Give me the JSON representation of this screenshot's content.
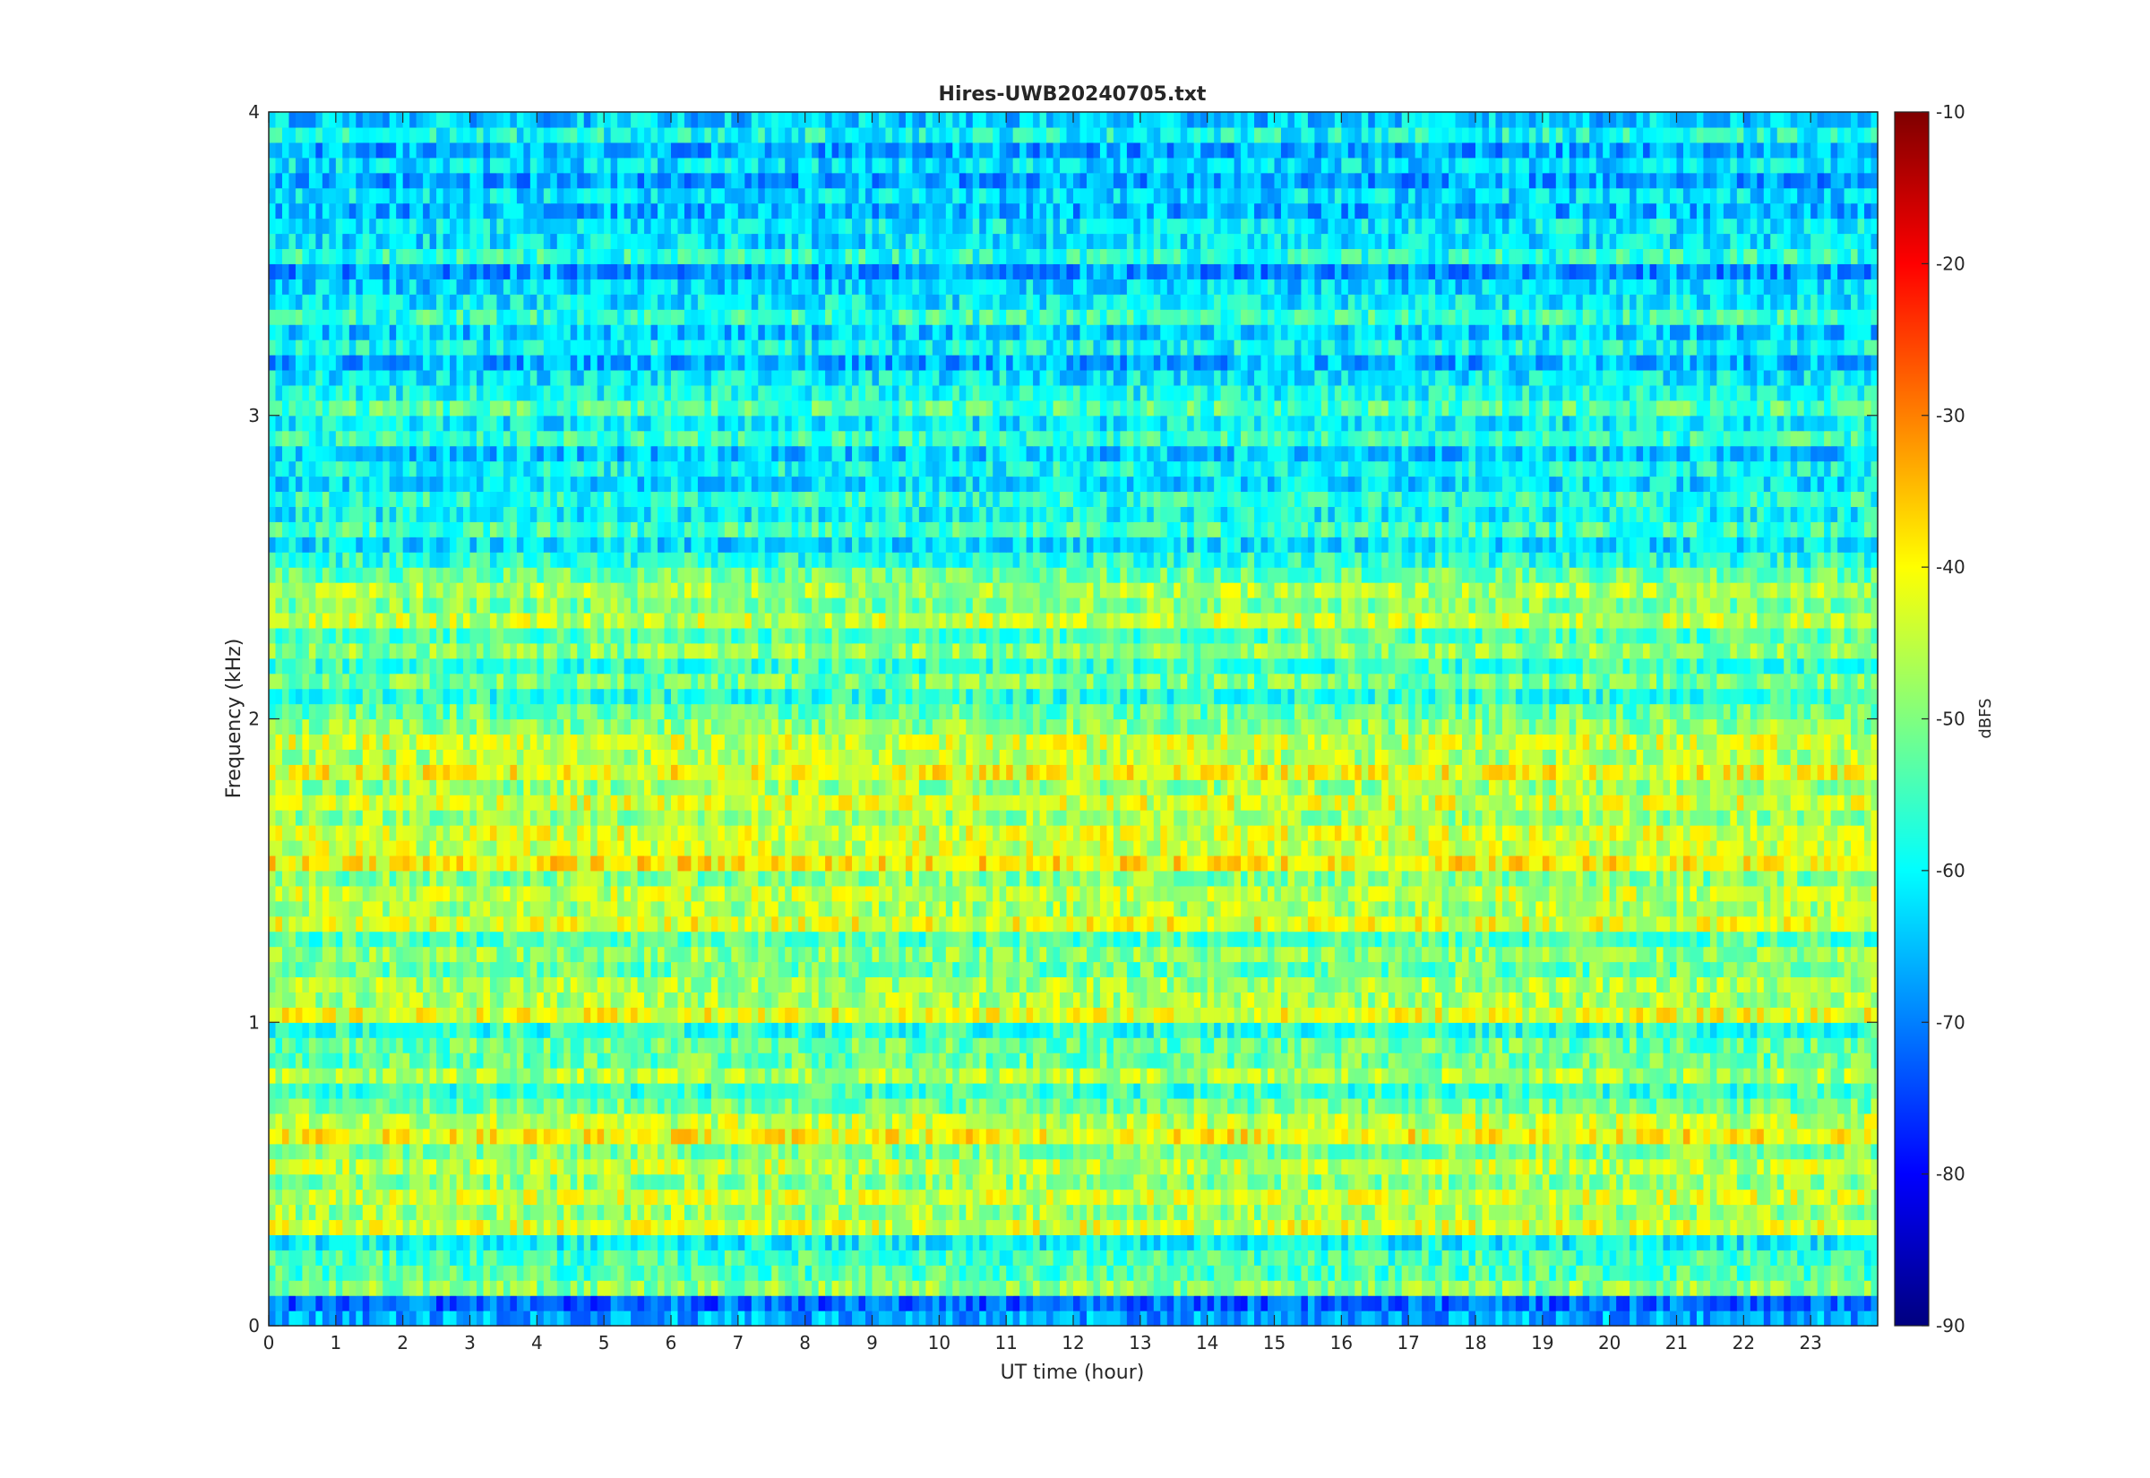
{
  "chart_data": {
    "type": "heatmap",
    "title": "Hires-UWB20240705.txt",
    "xlabel": "UT time (hour)",
    "ylabel": "Frequency (kHz)",
    "xlim": [
      0,
      24
    ],
    "ylim": [
      0,
      4
    ],
    "x_ticks": [
      "0",
      "1",
      "2",
      "3",
      "4",
      "5",
      "6",
      "7",
      "8",
      "9",
      "10",
      "11",
      "12",
      "13",
      "14",
      "15",
      "16",
      "17",
      "18",
      "19",
      "20",
      "21",
      "22",
      "23"
    ],
    "y_ticks": [
      "0",
      "1",
      "2",
      "3",
      "4"
    ],
    "colorbar": {
      "label": "dBFS",
      "limits": [
        -90,
        -10
      ],
      "ticks": [
        "-90",
        "-80",
        "-70",
        "-60",
        "-50",
        "-40",
        "-30",
        "-20",
        "-10"
      ],
      "colormap": "jet"
    },
    "bands": [
      {
        "f": 0.05,
        "level": -68
      },
      {
        "f": 0.15,
        "level": -50
      },
      {
        "f": 0.25,
        "level": -56
      },
      {
        "f": 0.35,
        "level": -44
      },
      {
        "f": 0.45,
        "level": -45
      },
      {
        "f": 0.55,
        "level": -46
      },
      {
        "f": 0.65,
        "level": -41
      },
      {
        "f": 0.75,
        "level": -52
      },
      {
        "f": 0.85,
        "level": -48
      },
      {
        "f": 0.95,
        "level": -53
      },
      {
        "f": 1.05,
        "level": -43
      },
      {
        "f": 1.15,
        "level": -48
      },
      {
        "f": 1.25,
        "level": -50
      },
      {
        "f": 1.35,
        "level": -43
      },
      {
        "f": 1.45,
        "level": -46
      },
      {
        "f": 1.55,
        "level": -40
      },
      {
        "f": 1.65,
        "level": -44
      },
      {
        "f": 1.75,
        "level": -44
      },
      {
        "f": 1.85,
        "level": -42
      },
      {
        "f": 1.95,
        "level": -45
      },
      {
        "f": 2.05,
        "level": -53
      },
      {
        "f": 2.15,
        "level": -52
      },
      {
        "f": 2.25,
        "level": -50
      },
      {
        "f": 2.35,
        "level": -46
      },
      {
        "f": 2.45,
        "level": -48
      },
      {
        "f": 2.55,
        "level": -58
      },
      {
        "f": 2.65,
        "level": -56
      },
      {
        "f": 2.75,
        "level": -58
      },
      {
        "f": 2.85,
        "level": -60
      },
      {
        "f": 2.95,
        "level": -57
      },
      {
        "f": 3.05,
        "level": -55
      },
      {
        "f": 3.15,
        "level": -62
      },
      {
        "f": 3.25,
        "level": -60
      },
      {
        "f": 3.35,
        "level": -57
      },
      {
        "f": 3.45,
        "level": -64
      },
      {
        "f": 3.55,
        "level": -58
      },
      {
        "f": 3.65,
        "level": -62
      },
      {
        "f": 3.75,
        "level": -63
      },
      {
        "f": 3.85,
        "level": -63
      },
      {
        "f": 3.95,
        "level": -60
      }
    ],
    "grid": false,
    "legend": "none"
  }
}
